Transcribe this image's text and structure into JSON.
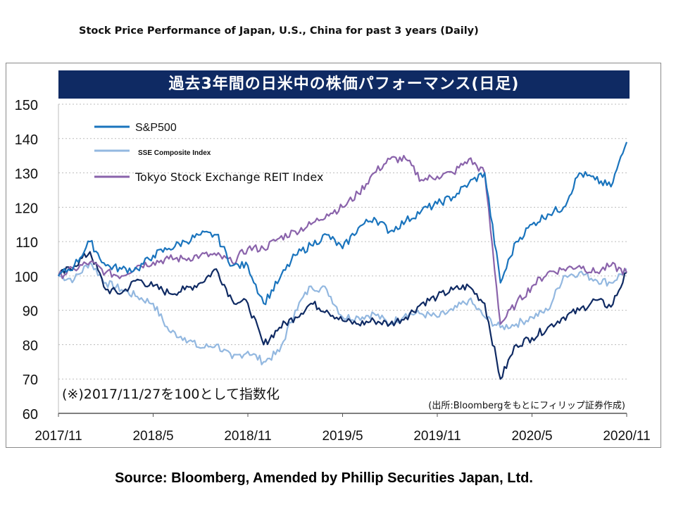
{
  "page_title": "Stock Price Performance of Japan, U.S., China for past 3 years (Daily)",
  "banner": "過去3年間の日米中の株価パフォーマンス(日足)",
  "note_index": "(※)2017/11/27を100として指数化",
  "note_source_jp": "(出所:Bloombergをもとにフィリップ証券作成)",
  "source": "Source: Bloomberg, Amended by Phillip Securities Japan, Ltd.",
  "chart_data": {
    "type": "line",
    "x_labels": [
      "2017/11",
      "2018/5",
      "2018/11",
      "2019/5",
      "2019/11",
      "2020/5",
      "2020/11"
    ],
    "y_ticks": [
      60,
      70,
      80,
      90,
      100,
      110,
      120,
      130,
      140,
      150
    ],
    "ylim": [
      60,
      150
    ],
    "grid": true,
    "legend_position": "top-left",
    "series": [
      {
        "name": "S&P500",
        "color": "#1a74bd",
        "x": [
          "2017/11",
          "2017/12",
          "2018/1",
          "2018/2",
          "2018/3",
          "2018/4",
          "2018/5",
          "2018/6",
          "2018/7",
          "2018/8",
          "2018/9",
          "2018/10",
          "2018/11",
          "2018/12",
          "2019/1",
          "2019/2",
          "2019/3",
          "2019/4",
          "2019/5",
          "2019/6",
          "2019/7",
          "2019/8",
          "2019/9",
          "2019/10",
          "2019/11",
          "2019/12",
          "2020/1",
          "2020/2",
          "2020/3",
          "2020/4",
          "2020/5",
          "2020/6",
          "2020/7",
          "2020/8",
          "2020/9",
          "2020/10",
          "2020/11"
        ],
        "values": [
          100,
          103,
          110,
          103,
          102,
          102,
          106,
          108,
          110,
          112,
          112,
          103,
          103,
          92,
          99,
          106,
          109,
          112,
          108,
          114,
          117,
          113,
          116,
          119,
          121,
          123,
          127,
          130,
          98,
          110,
          115,
          118,
          120,
          130,
          128,
          126,
          139
        ]
      },
      {
        "name": "SSE Composite Index",
        "color": "#93b8e0",
        "x": [
          "2017/11",
          "2017/12",
          "2018/1",
          "2018/2",
          "2018/3",
          "2018/4",
          "2018/5",
          "2018/6",
          "2018/7",
          "2018/8",
          "2018/9",
          "2018/10",
          "2018/11",
          "2018/12",
          "2019/1",
          "2019/2",
          "2019/3",
          "2019/4",
          "2019/5",
          "2019/6",
          "2019/7",
          "2019/8",
          "2019/9",
          "2019/10",
          "2019/11",
          "2019/12",
          "2020/1",
          "2020/2",
          "2020/3",
          "2020/4",
          "2020/5",
          "2020/6",
          "2020/7",
          "2020/8",
          "2020/9",
          "2020/10",
          "2020/11"
        ],
        "values": [
          100,
          99,
          104,
          98,
          96,
          94,
          92,
          84,
          82,
          79,
          80,
          76,
          78,
          75,
          78,
          90,
          97,
          96,
          88,
          88,
          89,
          86,
          89,
          89,
          88,
          90,
          93,
          88,
          85,
          86,
          88,
          90,
          100,
          101,
          99,
          98,
          102
        ]
      },
      {
        "name": "Tokyo Stock Exchange REIT Index",
        "color": "#8a63ab",
        "x": [
          "2017/11",
          "2017/12",
          "2018/1",
          "2018/2",
          "2018/3",
          "2018/4",
          "2018/5",
          "2018/6",
          "2018/7",
          "2018/8",
          "2018/9",
          "2018/10",
          "2018/11",
          "2018/12",
          "2019/1",
          "2019/2",
          "2019/3",
          "2019/4",
          "2019/5",
          "2019/6",
          "2019/7",
          "2019/8",
          "2019/9",
          "2019/10",
          "2019/11",
          "2019/12",
          "2020/1",
          "2020/2",
          "2020/3",
          "2020/4",
          "2020/5",
          "2020/6",
          "2020/7",
          "2020/8",
          "2020/9",
          "2020/10",
          "2020/11"
        ],
        "values": [
          100,
          102,
          104,
          101,
          100,
          103,
          104,
          105,
          105,
          106,
          106,
          104,
          108,
          108,
          111,
          113,
          115,
          118,
          120,
          124,
          130,
          134,
          134,
          128,
          129,
          130,
          134,
          130,
          86,
          92,
          97,
          101,
          102,
          103,
          101,
          103,
          101
        ]
      },
      {
        "name": "",
        "color": "#0f2a63",
        "x": [
          "2017/11",
          "2017/12",
          "2018/1",
          "2018/2",
          "2018/3",
          "2018/4",
          "2018/5",
          "2018/6",
          "2018/7",
          "2018/8",
          "2018/9",
          "2018/10",
          "2018/11",
          "2018/12",
          "2019/1",
          "2019/2",
          "2019/3",
          "2019/4",
          "2019/5",
          "2019/6",
          "2019/7",
          "2019/8",
          "2019/9",
          "2019/10",
          "2019/11",
          "2019/12",
          "2020/1",
          "2020/2",
          "2020/3",
          "2020/4",
          "2020/5",
          "2020/6",
          "2020/7",
          "2020/8",
          "2020/9",
          "2020/10",
          "2020/11"
        ],
        "values": [
          100,
          103,
          107,
          96,
          95,
          99,
          97,
          95,
          96,
          98,
          102,
          93,
          92,
          80,
          85,
          88,
          92,
          90,
          87,
          86,
          87,
          86,
          88,
          92,
          94,
          96,
          97,
          92,
          70,
          80,
          82,
          85,
          88,
          90,
          93,
          91,
          101
        ]
      }
    ]
  }
}
